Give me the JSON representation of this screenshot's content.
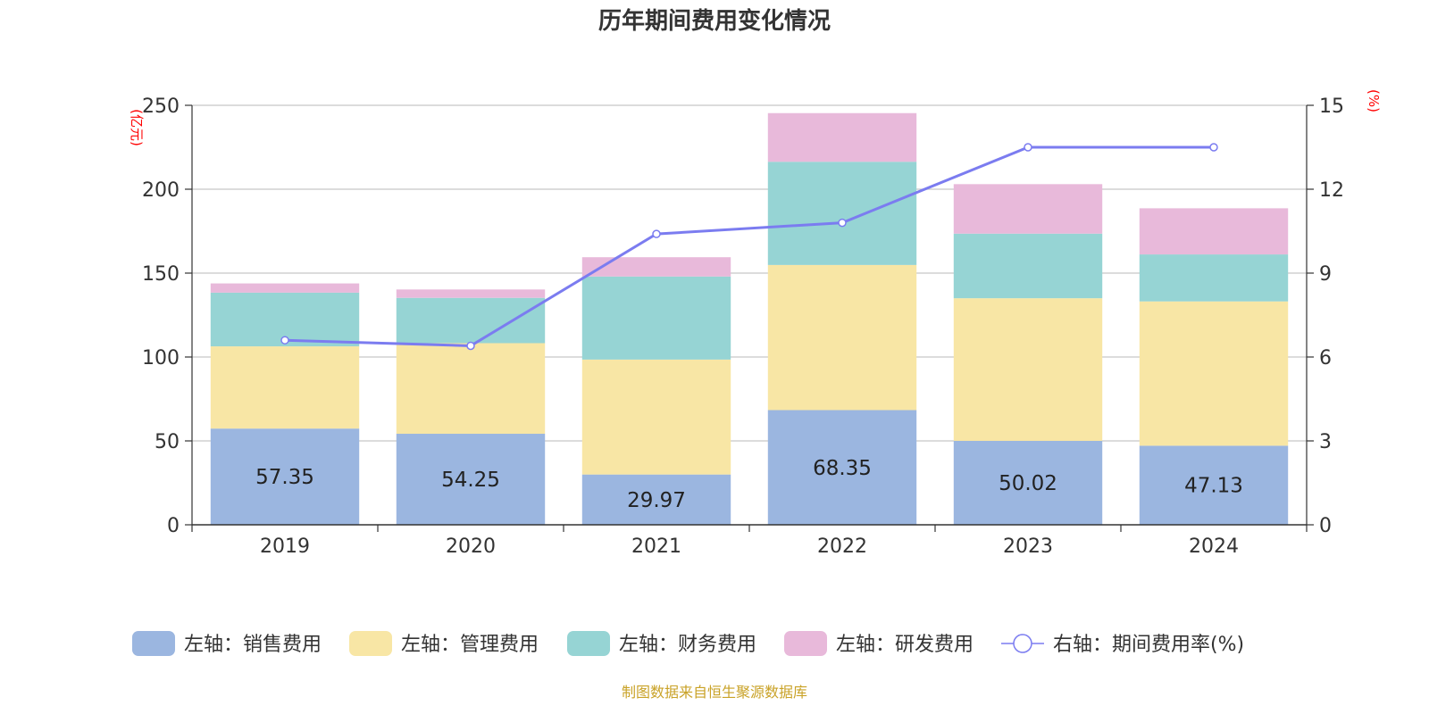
{
  "chart_data": {
    "type": "bar",
    "stacked": true,
    "title": "历年期间费用变化情况",
    "categories": [
      "2019",
      "2020",
      "2021",
      "2022",
      "2023",
      "2024"
    ],
    "left_axis": {
      "unit": "(亿元)",
      "ylim": [
        0,
        250
      ],
      "ticks": [
        0,
        50,
        100,
        150,
        200,
        250
      ]
    },
    "right_axis": {
      "unit": "(%)",
      "ylim": [
        0,
        15
      ],
      "ticks": [
        0,
        3,
        6,
        9,
        12,
        15
      ]
    },
    "series": [
      {
        "name": "左轴：销售费用",
        "axis": "left",
        "kind": "bar",
        "color": "#9bb6e0",
        "values": [
          57.35,
          54.25,
          29.97,
          68.35,
          50.02,
          47.13
        ],
        "show_labels": true
      },
      {
        "name": "左轴：管理费用",
        "axis": "left",
        "kind": "bar",
        "color": "#f8e6a5",
        "values": [
          49.0,
          54.0,
          68.5,
          86.5,
          85.0,
          86.0
        ],
        "show_labels": false
      },
      {
        "name": "左轴：财务费用",
        "axis": "left",
        "kind": "bar",
        "color": "#96d4d4",
        "values": [
          32.0,
          27.0,
          49.5,
          61.5,
          38.5,
          28.0
        ],
        "show_labels": false
      },
      {
        "name": "左轴：研发费用",
        "axis": "left",
        "kind": "bar",
        "color": "#e8b9da",
        "values": [
          5.5,
          5.0,
          11.5,
          29.0,
          29.5,
          27.5
        ],
        "show_labels": false
      },
      {
        "name": "右轴：期间费用率(%)",
        "axis": "right",
        "kind": "line",
        "color": "#7b7cf0",
        "values": [
          6.6,
          6.4,
          10.4,
          10.8,
          13.5,
          13.5
        ],
        "show_labels": false
      }
    ],
    "source_note": "制图数据来自恒生聚源数据库"
  }
}
